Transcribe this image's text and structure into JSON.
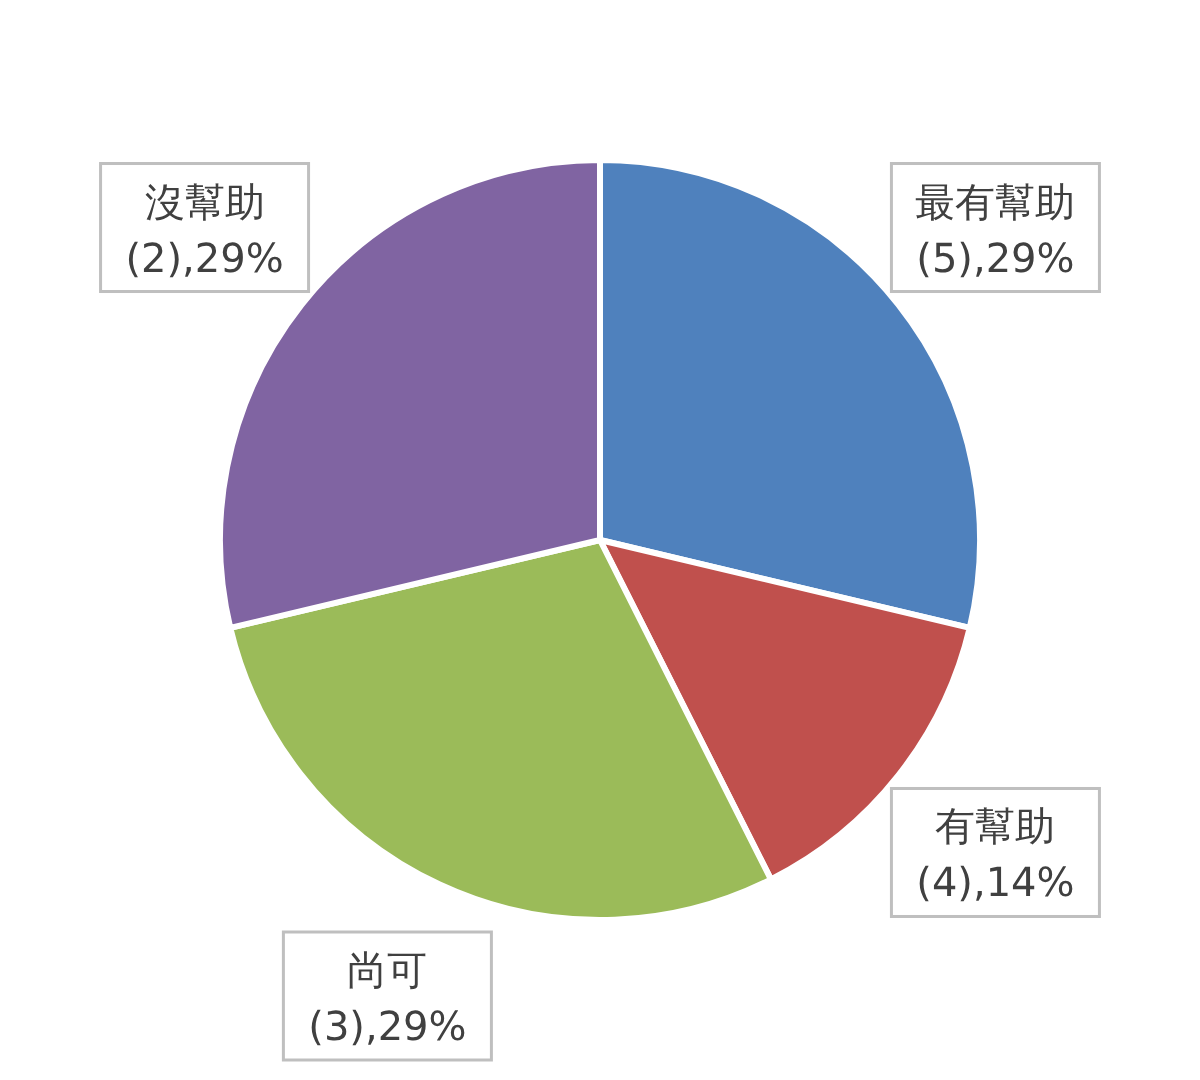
{
  "chart_data": {
    "type": "pie",
    "categories": [
      "最有幫助",
      "有幫助",
      "尚可",
      "沒幫助"
    ],
    "values": [
      29,
      14,
      29,
      29
    ],
    "colors": [
      "#4f81bd",
      "#c0504d",
      "#9bbb59",
      "#8064a2"
    ],
    "value_labels": [
      "(5),29%",
      "(4),14%",
      "(3),29%",
      "(2),29%"
    ]
  }
}
